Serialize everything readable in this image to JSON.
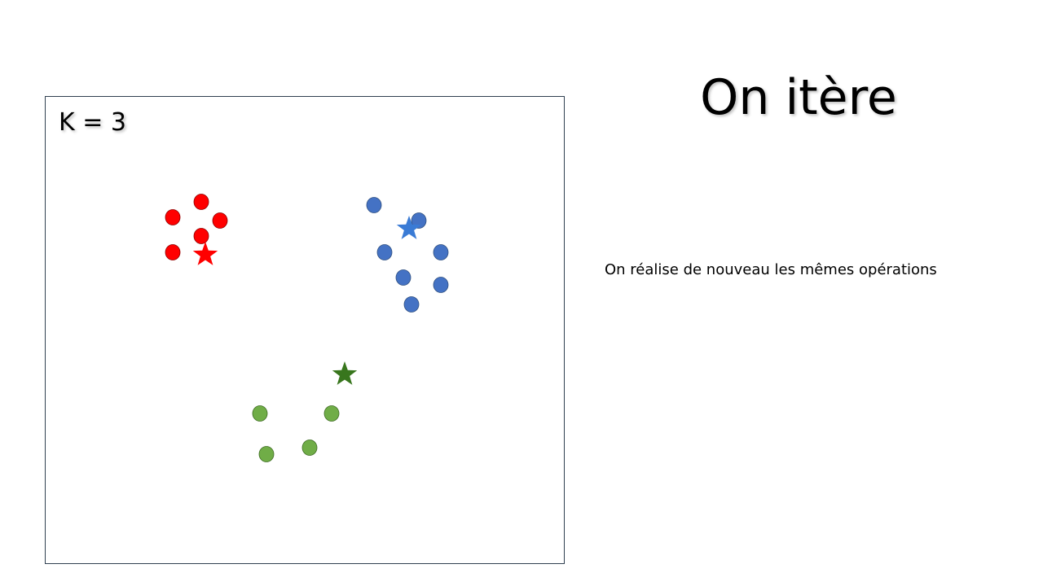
{
  "title": "On itère",
  "body_text": "On réalise de nouveau les mêmes opérations",
  "diagram": {
    "k_label": "K = 3",
    "colors": {
      "red": "#ff0000",
      "blue": "#4472c4",
      "green": "#70ad47",
      "blue_star": "#3a7bd5",
      "green_star": "#38761d"
    }
  },
  "clusters": [
    {
      "name": "red",
      "color": "#ff0000",
      "star_color": "#ff0000"
    },
    {
      "name": "blue",
      "color": "#4472c4",
      "star_color": "#3a7bd5"
    },
    {
      "name": "green",
      "color": "#70ad47",
      "star_color": "#38761d"
    }
  ]
}
